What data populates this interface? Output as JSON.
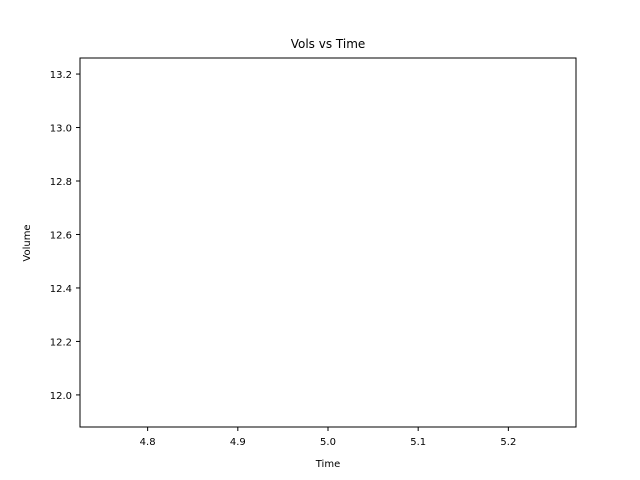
{
  "chart_data": {
    "type": "line",
    "title": "Vols vs Time",
    "xlabel": "Time",
    "ylabel": "Volume",
    "xlim": [
      4.725,
      5.275
    ],
    "ylim": [
      11.88,
      13.26
    ],
    "xticks": [
      4.8,
      4.9,
      5.0,
      5.1,
      5.2
    ],
    "xtick_labels": [
      "4.8",
      "4.9",
      "5.0",
      "5.1",
      "5.2"
    ],
    "yticks": [
      12.0,
      12.2,
      12.4,
      12.6,
      12.8,
      13.0,
      13.2
    ],
    "ytick_labels": [
      "12.0",
      "12.2",
      "12.4",
      "12.6",
      "12.8",
      "13.0",
      "13.2"
    ],
    "grid": false,
    "series": [],
    "colors": {
      "axes": "#000000",
      "background": "#ffffff"
    }
  }
}
